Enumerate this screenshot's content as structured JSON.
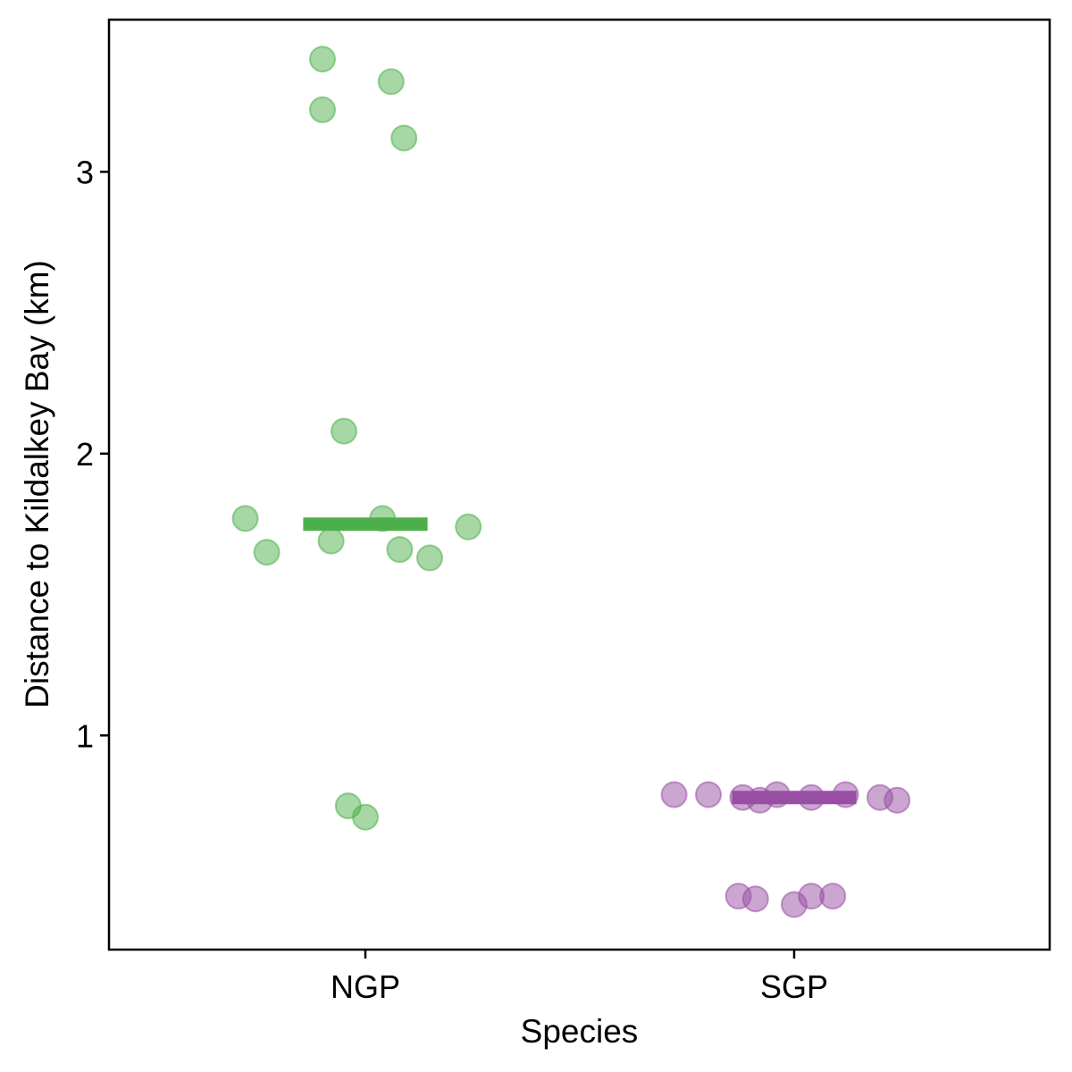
{
  "chart_data": {
    "type": "scatter",
    "subtype": "jittered strip plot with mean bars",
    "title": "",
    "xlabel": "Species",
    "ylabel": "Distance to Kildalkey Bay (km)",
    "categories": [
      "NGP",
      "SGP"
    ],
    "y_ticks": [
      1,
      2,
      3
    ],
    "y_tick_labels": [
      "1",
      "2",
      "3"
    ],
    "ylim": [
      0.24,
      3.54
    ],
    "grid": false,
    "legend": "none",
    "series": [
      {
        "category": "NGP",
        "color": "#4daf4a",
        "mean": 1.75,
        "points": [
          {
            "jitter": -0.1,
            "y": 3.4
          },
          {
            "jitter": 0.06,
            "y": 3.32
          },
          {
            "jitter": -0.1,
            "y": 3.22
          },
          {
            "jitter": 0.09,
            "y": 3.12
          },
          {
            "jitter": -0.05,
            "y": 2.08
          },
          {
            "jitter": -0.28,
            "y": 1.77
          },
          {
            "jitter": 0.04,
            "y": 1.77
          },
          {
            "jitter": 0.24,
            "y": 1.74
          },
          {
            "jitter": -0.08,
            "y": 1.69
          },
          {
            "jitter": 0.08,
            "y": 1.66
          },
          {
            "jitter": -0.23,
            "y": 1.65
          },
          {
            "jitter": 0.15,
            "y": 1.63
          },
          {
            "jitter": -0.04,
            "y": 0.75
          },
          {
            "jitter": 0.0,
            "y": 0.71
          }
        ]
      },
      {
        "category": "SGP",
        "color": "#984ea3",
        "mean": 0.78,
        "points": [
          {
            "jitter": -0.28,
            "y": 0.79
          },
          {
            "jitter": -0.2,
            "y": 0.79
          },
          {
            "jitter": -0.12,
            "y": 0.78
          },
          {
            "jitter": -0.08,
            "y": 0.77
          },
          {
            "jitter": -0.04,
            "y": 0.79
          },
          {
            "jitter": 0.04,
            "y": 0.78
          },
          {
            "jitter": 0.12,
            "y": 0.79
          },
          {
            "jitter": 0.2,
            "y": 0.78
          },
          {
            "jitter": 0.24,
            "y": 0.77
          },
          {
            "jitter": -0.13,
            "y": 0.43
          },
          {
            "jitter": -0.09,
            "y": 0.42
          },
          {
            "jitter": 0.0,
            "y": 0.4
          },
          {
            "jitter": 0.04,
            "y": 0.43
          },
          {
            "jitter": 0.09,
            "y": 0.43
          }
        ]
      }
    ]
  }
}
